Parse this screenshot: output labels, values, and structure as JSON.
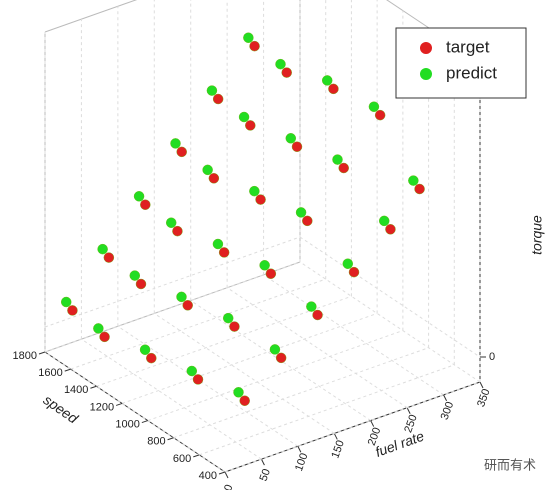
{
  "chart_data": {
    "type": "scatter3d",
    "xlabel": "fuel rate",
    "ylabel": "speed",
    "zlabel": "torque",
    "xlim": [
      0,
      350
    ],
    "ylim": [
      400,
      1800
    ],
    "zlim": [
      -25,
      295
    ],
    "xticks": [
      0,
      50,
      100,
      150,
      200,
      250,
      300,
      350
    ],
    "yticks": [
      400,
      600,
      800,
      1000,
      1200,
      1400,
      1600,
      1800
    ],
    "zticks": [
      0
    ],
    "grid": true,
    "legend": "upper right",
    "series": [
      {
        "name": "target",
        "color": "#e02020",
        "x": [
          20,
          70,
          120,
          170,
          220,
          270,
          20,
          70,
          120,
          170,
          220,
          270,
          40,
          90,
          140,
          190,
          240,
          290,
          60,
          110,
          160,
          210,
          260,
          310,
          80,
          130,
          180,
          230,
          280,
          320
        ],
        "y": [
          1700,
          1700,
          1700,
          1700,
          1700,
          1700,
          1450,
          1450,
          1450,
          1450,
          1450,
          1450,
          1200,
          1200,
          1200,
          1200,
          1200,
          1200,
          950,
          950,
          950,
          950,
          950,
          950,
          700,
          700,
          700,
          700,
          700,
          700
        ],
        "z": [
          20,
          60,
          100,
          140,
          180,
          220,
          15,
          55,
          95,
          135,
          175,
          215,
          10,
          50,
          90,
          130,
          170,
          215,
          5,
          45,
          85,
          125,
          165,
          205,
          0,
          30,
          60,
          90,
          120,
          150
        ]
      },
      {
        "name": "predict",
        "color": "#22dd22",
        "x": [
          15,
          65,
          115,
          165,
          215,
          265,
          15,
          65,
          115,
          165,
          215,
          265,
          35,
          85,
          135,
          185,
          235,
          285,
          55,
          105,
          155,
          205,
          255,
          305,
          75,
          125,
          175,
          225,
          275,
          315
        ],
        "y": [
          1720,
          1720,
          1720,
          1720,
          1720,
          1720,
          1470,
          1470,
          1470,
          1470,
          1470,
          1470,
          1220,
          1220,
          1220,
          1220,
          1220,
          1220,
          970,
          970,
          970,
          970,
          970,
          970,
          720,
          720,
          720,
          720,
          720,
          720
        ],
        "z": [
          28,
          68,
          108,
          148,
          188,
          228,
          23,
          63,
          103,
          143,
          183,
          223,
          18,
          58,
          98,
          138,
          178,
          223,
          13,
          53,
          93,
          133,
          173,
          213,
          8,
          38,
          68,
          98,
          128,
          158
        ]
      }
    ]
  },
  "watermark": "研而有术"
}
